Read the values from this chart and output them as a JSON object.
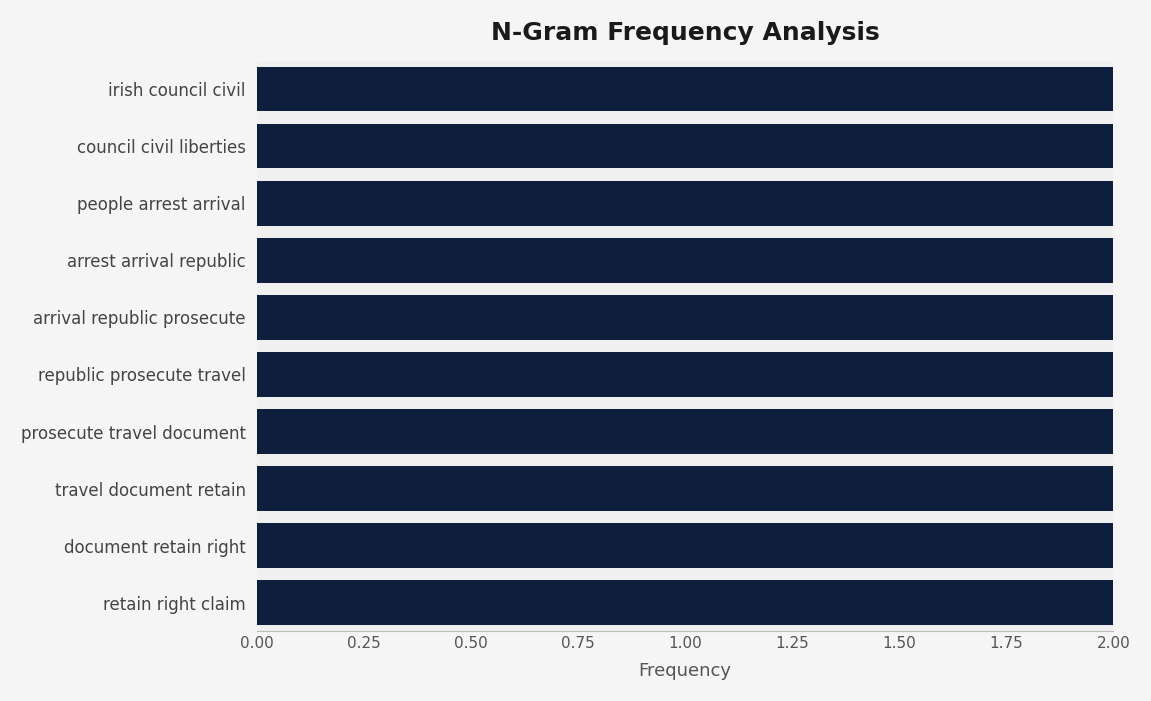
{
  "title": "N-Gram Frequency Analysis",
  "categories": [
    "retain right claim",
    "document retain right",
    "travel document retain",
    "prosecute travel document",
    "republic prosecute travel",
    "arrival republic prosecute",
    "arrest arrival republic",
    "people arrest arrival",
    "council civil liberties",
    "irish council civil"
  ],
  "values": [
    2,
    2,
    2,
    2,
    2,
    2,
    2,
    2,
    2,
    2
  ],
  "bar_color": "#0d1f3c",
  "background_color": "#f5f5f5",
  "plot_bg_color": "#f0f0f0",
  "title_fontsize": 18,
  "xlabel": "Frequency",
  "xlabel_fontsize": 13,
  "ytick_fontsize": 12,
  "xtick_fontsize": 11,
  "xlim": [
    0,
    2.0
  ],
  "xticks": [
    0.0,
    0.25,
    0.5,
    0.75,
    1.0,
    1.25,
    1.5,
    1.75,
    2.0
  ],
  "bar_height": 0.78
}
